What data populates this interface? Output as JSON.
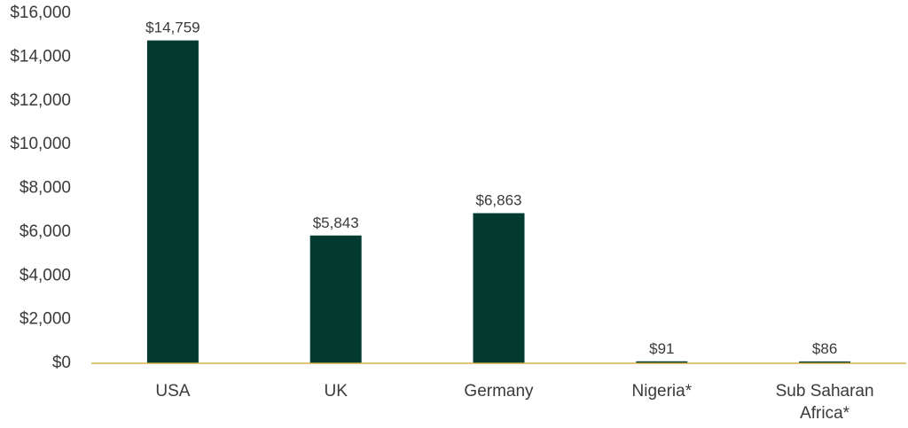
{
  "chart_data": {
    "type": "bar",
    "title": "",
    "xlabel": "",
    "ylabel": "",
    "categories": [
      [
        "USA"
      ],
      [
        "UK"
      ],
      [
        "Germany"
      ],
      [
        "Nigeria*"
      ],
      [
        "Sub Saharan",
        "Africa*"
      ]
    ],
    "values": [
      14759,
      5843,
      6863,
      91,
      86
    ],
    "data_labels": [
      "$14,759",
      "$5,843",
      "$6,863",
      "$91",
      "$86"
    ],
    "ylim": [
      0,
      16000
    ],
    "yticks": [
      0,
      2000,
      4000,
      6000,
      8000,
      10000,
      12000,
      14000,
      16000
    ],
    "ytick_labels": [
      "$0",
      "$2,000",
      "$4,000",
      "$6,000",
      "$8,000",
      "$10,000",
      "$12,000",
      "$14,000",
      "$16,000"
    ],
    "grid": false,
    "legend": "none",
    "colors": {
      "bar": "#023A30",
      "baseline": "#D4B24C",
      "text": "#3a3a3a"
    }
  }
}
